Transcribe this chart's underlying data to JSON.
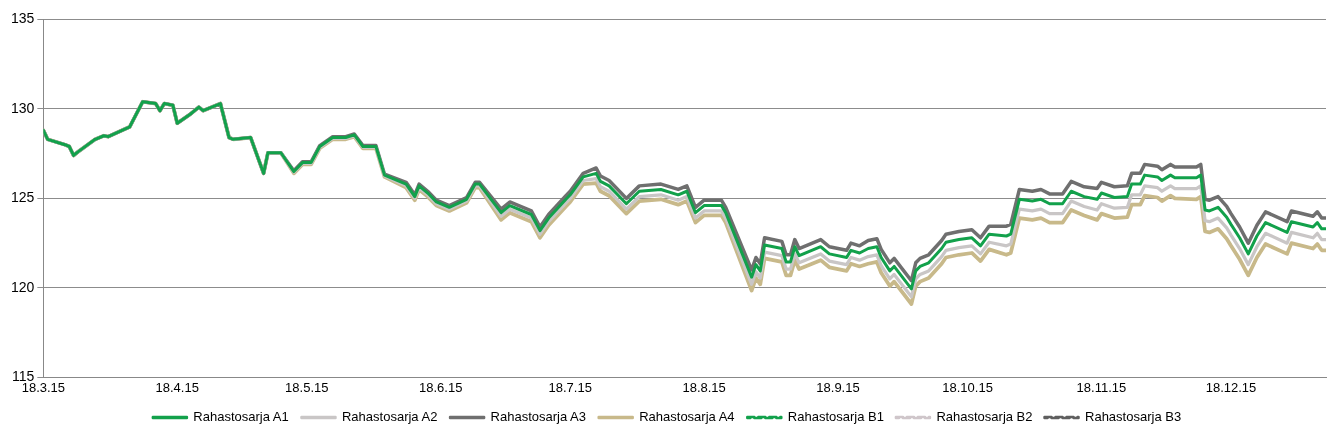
{
  "chart_data": {
    "type": "line",
    "line_style": "solid",
    "marker": "none",
    "grid": "y",
    "legend": "bottom",
    "ylim": [
      115,
      135
    ],
    "yticks": [
      115,
      120,
      125,
      130,
      135
    ],
    "xlim": [
      "2015-03-18",
      "2016-01-09"
    ],
    "xticks": [
      {
        "value": "2015-03-18",
        "label": "18.3.15"
      },
      {
        "value": "2015-04-18",
        "label": "18.4.15"
      },
      {
        "value": "2015-05-18",
        "label": "18.5.15"
      },
      {
        "value": "2015-06-18",
        "label": "18.6.15"
      },
      {
        "value": "2015-07-18",
        "label": "18.7.15"
      },
      {
        "value": "2015-08-18",
        "label": "18.8.15"
      },
      {
        "value": "2015-09-18",
        "label": "18.9.15"
      },
      {
        "value": "2015-10-18",
        "label": "18.10.15"
      },
      {
        "value": "2015-11-18",
        "label": "18.11.15"
      },
      {
        "value": "2015-12-18",
        "label": "18.12.15"
      }
    ],
    "x": [
      "2015-03-18",
      "2015-03-19",
      "2015-03-23",
      "2015-03-24",
      "2015-03-25",
      "2015-03-26",
      "2015-03-30",
      "2015-04-01",
      "2015-04-02",
      "2015-04-07",
      "2015-04-10",
      "2015-04-13",
      "2015-04-14",
      "2015-04-15",
      "2015-04-17",
      "2015-04-18",
      "2015-04-21",
      "2015-04-23",
      "2015-04-24",
      "2015-04-28",
      "2015-04-30",
      "2015-05-01",
      "2015-05-05",
      "2015-05-08",
      "2015-05-09",
      "2015-05-12",
      "2015-05-15",
      "2015-05-17",
      "2015-05-19",
      "2015-05-21",
      "2015-05-24",
      "2015-05-27",
      "2015-05-29",
      "2015-05-31",
      "2015-06-03",
      "2015-06-05",
      "2015-06-10",
      "2015-06-12",
      "2015-06-13",
      "2015-06-15",
      "2015-06-17",
      "2015-06-20",
      "2015-06-24",
      "2015-06-26",
      "2015-06-27",
      "2015-07-02",
      "2015-07-04",
      "2015-07-09",
      "2015-07-11",
      "2015-07-13",
      "2015-07-17",
      "2015-07-18",
      "2015-07-21",
      "2015-07-24",
      "2015-07-25",
      "2015-07-27",
      "2015-07-31",
      "2015-08-03",
      "2015-08-08",
      "2015-08-12",
      "2015-08-14",
      "2015-08-16",
      "2015-08-18",
      "2015-08-22",
      "2015-08-23",
      "2015-08-29",
      "2015-08-30",
      "2015-08-31",
      "2015-09-01",
      "2015-09-05",
      "2015-09-06",
      "2015-09-07",
      "2015-09-08",
      "2015-09-09",
      "2015-09-14",
      "2015-09-16",
      "2015-09-20",
      "2015-09-21",
      "2015-09-23",
      "2015-09-25",
      "2015-09-27",
      "2015-09-28",
      "2015-09-30",
      "2015-10-01",
      "2015-10-05",
      "2015-10-06",
      "2015-10-07",
      "2015-10-09",
      "2015-10-12",
      "2015-10-13",
      "2015-10-16",
      "2015-10-19",
      "2015-10-21",
      "2015-10-23",
      "2015-10-27",
      "2015-10-28",
      "2015-10-30",
      "2015-11-02",
      "2015-11-04",
      "2015-11-06",
      "2015-11-09",
      "2015-11-11",
      "2015-11-14",
      "2015-11-17",
      "2015-11-18",
      "2015-11-21",
      "2015-11-24",
      "2015-11-25",
      "2015-11-27",
      "2015-11-28",
      "2015-12-01",
      "2015-12-02",
      "2015-12-04",
      "2015-12-05",
      "2015-12-10",
      "2015-12-11",
      "2015-12-12",
      "2015-12-13",
      "2015-12-15",
      "2015-12-17",
      "2015-12-18",
      "2015-12-20",
      "2015-12-22",
      "2015-12-24",
      "2015-12-26",
      "2015-12-31",
      "2016-01-01",
      "2016-01-06",
      "2016-01-07",
      "2016-01-08",
      "2016-01-09"
    ],
    "series": [
      {
        "name": "Rahastosarja A1",
        "color": "#12a14b",
        "values": [
          128.8,
          128.3,
          128.0,
          127.9,
          127.4,
          127.6,
          128.3,
          128.5,
          128.45,
          129.0,
          130.4,
          130.3,
          129.9,
          130.3,
          130.2,
          129.2,
          129.7,
          130.1,
          129.9,
          130.3,
          128.4,
          128.3,
          128.4,
          126.4,
          127.55,
          127.55,
          126.5,
          127.0,
          127.0,
          127.9,
          128.4,
          128.4,
          128.55,
          127.9,
          127.9,
          126.3,
          125.8,
          125.1,
          125.7,
          125.3,
          124.8,
          124.5,
          124.95,
          125.8,
          125.8,
          124.2,
          124.6,
          124.1,
          123.2,
          123.9,
          124.95,
          125.2,
          126.2,
          126.4,
          125.95,
          125.7,
          124.7,
          125.4,
          125.5,
          125.2,
          125.4,
          124.2,
          124.6,
          124.6,
          124.2,
          120.6,
          121.3,
          120.95,
          122.4,
          122.2,
          121.45,
          121.45,
          122.3,
          121.8,
          122.3,
          121.9,
          121.7,
          122.1,
          121.95,
          122.2,
          122.3,
          121.7,
          120.95,
          121.2,
          119.95,
          120.95,
          121.2,
          121.4,
          122.2,
          122.55,
          122.7,
          122.8,
          122.35,
          123.0,
          122.9,
          123.0,
          124.95,
          124.85,
          124.95,
          124.7,
          124.7,
          125.4,
          125.1,
          124.95,
          125.3,
          125.05,
          125.1,
          125.8,
          125.8,
          126.3,
          126.2,
          126.0,
          126.3,
          126.15,
          126.15,
          126.3,
          124.35,
          124.3,
          124.5,
          123.95,
          123.55,
          122.8,
          121.9,
          122.9,
          123.65,
          123.1,
          123.7,
          123.4,
          123.65,
          123.3,
          123.3
        ]
      },
      {
        "name": "Rahastosarja A2",
        "color": "#c9c6c6",
        "values": [
          128.8,
          128.3,
          128.0,
          127.9,
          127.4,
          127.6,
          128.3,
          128.5,
          128.45,
          129.0,
          130.4,
          130.3,
          129.9,
          130.3,
          130.2,
          129.2,
          129.7,
          130.1,
          129.9,
          130.3,
          128.4,
          128.3,
          128.4,
          126.4,
          127.55,
          127.55,
          126.45,
          126.95,
          126.95,
          127.85,
          128.35,
          128.35,
          128.5,
          127.85,
          127.85,
          126.25,
          125.7,
          125.0,
          125.6,
          125.2,
          124.7,
          124.4,
          124.85,
          125.7,
          125.7,
          124.0,
          124.4,
          123.9,
          123.0,
          123.7,
          124.75,
          125.0,
          126.0,
          126.1,
          125.65,
          125.4,
          124.4,
          125.1,
          125.2,
          124.9,
          125.1,
          123.9,
          124.3,
          124.3,
          123.9,
          120.2,
          120.9,
          120.55,
          122.0,
          121.8,
          121.05,
          121.05,
          121.9,
          121.4,
          121.9,
          121.5,
          121.3,
          121.7,
          121.55,
          121.75,
          121.85,
          121.25,
          120.5,
          120.75,
          119.5,
          120.5,
          120.75,
          120.95,
          121.75,
          122.1,
          122.25,
          122.35,
          121.9,
          122.55,
          122.35,
          122.45,
          124.4,
          124.3,
          124.4,
          124.15,
          124.15,
          124.85,
          124.55,
          124.35,
          124.7,
          124.45,
          124.5,
          125.2,
          125.2,
          125.7,
          125.6,
          125.4,
          125.7,
          125.55,
          125.55,
          125.7,
          123.75,
          123.7,
          123.9,
          123.35,
          122.95,
          122.2,
          121.3,
          122.3,
          123.05,
          122.5,
          123.1,
          122.8,
          123.05,
          122.7,
          122.7
        ]
      },
      {
        "name": "Rahastosarja A3",
        "color": "#6f6f6f",
        "values": [
          128.8,
          128.3,
          128.0,
          127.9,
          127.4,
          127.6,
          128.3,
          128.5,
          128.45,
          129.0,
          130.4,
          130.3,
          129.9,
          130.3,
          130.2,
          129.2,
          129.7,
          130.1,
          129.9,
          130.3,
          128.4,
          128.3,
          128.4,
          126.4,
          127.55,
          127.55,
          126.55,
          127.05,
          127.05,
          127.95,
          128.45,
          128.45,
          128.6,
          127.95,
          127.95,
          126.35,
          125.9,
          125.2,
          125.8,
          125.4,
          124.9,
          124.6,
          125.05,
          125.9,
          125.9,
          124.4,
          124.8,
          124.3,
          123.4,
          124.1,
          125.15,
          125.4,
          126.4,
          126.7,
          126.25,
          126.0,
          125.0,
          125.7,
          125.8,
          125.5,
          125.7,
          124.5,
          124.9,
          124.9,
          124.5,
          121.0,
          121.7,
          121.35,
          122.8,
          122.6,
          121.85,
          121.85,
          122.7,
          122.2,
          122.7,
          122.3,
          122.1,
          122.5,
          122.35,
          122.65,
          122.75,
          122.15,
          121.4,
          121.65,
          120.4,
          121.4,
          121.65,
          121.85,
          122.65,
          123.0,
          123.15,
          123.25,
          122.8,
          123.45,
          123.45,
          123.55,
          125.5,
          125.4,
          125.5,
          125.25,
          125.25,
          125.95,
          125.65,
          125.55,
          125.9,
          125.65,
          125.7,
          126.4,
          126.4,
          126.9,
          126.8,
          126.6,
          126.9,
          126.75,
          126.75,
          126.9,
          124.95,
          124.9,
          125.1,
          124.55,
          124.15,
          123.4,
          122.5,
          123.5,
          124.25,
          123.7,
          124.3,
          124.0,
          124.25,
          123.9,
          123.9
        ]
      },
      {
        "name": "Rahastosarja A4",
        "color": "#c8b98a",
        "values": [
          128.8,
          128.3,
          128.0,
          127.9,
          127.4,
          127.6,
          128.3,
          128.5,
          128.45,
          129.0,
          130.4,
          130.3,
          129.9,
          130.3,
          130.2,
          129.2,
          129.7,
          130.1,
          129.9,
          130.3,
          128.4,
          128.3,
          128.4,
          126.4,
          127.55,
          127.55,
          126.4,
          126.9,
          126.9,
          127.8,
          128.3,
          128.3,
          128.45,
          127.8,
          127.8,
          126.2,
          125.6,
          124.9,
          125.5,
          125.1,
          124.6,
          124.3,
          124.75,
          125.6,
          125.6,
          123.8,
          124.2,
          123.7,
          122.8,
          123.5,
          124.55,
          124.8,
          125.8,
          125.85,
          125.4,
          125.15,
          124.15,
          124.85,
          124.95,
          124.65,
          124.85,
          123.65,
          124.05,
          124.05,
          123.65,
          119.85,
          120.55,
          120.2,
          121.65,
          121.45,
          120.7,
          120.7,
          121.55,
          121.05,
          121.55,
          121.15,
          120.95,
          121.35,
          121.2,
          121.35,
          121.45,
          120.85,
          120.1,
          120.35,
          119.1,
          120.1,
          120.35,
          120.55,
          121.35,
          121.7,
          121.85,
          121.95,
          121.5,
          122.15,
          121.85,
          121.95,
          123.9,
          123.8,
          123.9,
          123.65,
          123.65,
          124.35,
          124.05,
          123.8,
          124.15,
          123.9,
          123.95,
          124.65,
          124.65,
          125.15,
          125.05,
          124.85,
          125.15,
          125.0,
          124.95,
          125.1,
          123.15,
          123.1,
          123.3,
          122.75,
          122.35,
          121.6,
          120.7,
          121.7,
          122.45,
          121.9,
          122.5,
          122.2,
          122.45,
          122.1,
          122.1
        ]
      },
      {
        "name": "Rahastosarja B1",
        "color": "#12a14b",
        "line_style": "dashed",
        "values": [
          null,
          null,
          null,
          null,
          null,
          null,
          null,
          null,
          null,
          null,
          null,
          null,
          null,
          null,
          null,
          null,
          null,
          null,
          null,
          null,
          null,
          null,
          null,
          null,
          null,
          null,
          null,
          null,
          null,
          null,
          null,
          null,
          null,
          null,
          null,
          null,
          null,
          null,
          null,
          null,
          null,
          null,
          null,
          null,
          null,
          null,
          null,
          null,
          null,
          null,
          null,
          null,
          null,
          null,
          null,
          null,
          null,
          null,
          null,
          null,
          null,
          null,
          null,
          null,
          null,
          null,
          null,
          null,
          null,
          null,
          null,
          null,
          null,
          null,
          null,
          null,
          null,
          null,
          null,
          null,
          null,
          null,
          null,
          null,
          null,
          null,
          null,
          null,
          null,
          null,
          null,
          null,
          null,
          null,
          null,
          null,
          null,
          null,
          null,
          null,
          null,
          null,
          null,
          null,
          null,
          null,
          null,
          null,
          null,
          null,
          null,
          null,
          null,
          null,
          null,
          null,
          null,
          null,
          null,
          null,
          null,
          null,
          null,
          null,
          null,
          null,
          null,
          null,
          null,
          null,
          null
        ]
      },
      {
        "name": "Rahastosarja B2",
        "color": "#cfc6ca",
        "line_style": "dashed",
        "values": [
          null,
          null,
          null,
          null,
          null,
          null,
          null,
          null,
          null,
          null,
          null,
          null,
          null,
          null,
          null,
          null,
          null,
          null,
          null,
          null,
          null,
          null,
          null,
          null,
          null,
          null,
          null,
          null,
          null,
          null,
          null,
          null,
          null,
          null,
          null,
          null,
          null,
          null,
          null,
          null,
          null,
          null,
          null,
          null,
          null,
          null,
          null,
          null,
          null,
          null,
          null,
          null,
          null,
          null,
          null,
          null,
          null,
          null,
          null,
          null,
          null,
          null,
          null,
          null,
          null,
          null,
          null,
          null,
          null,
          null,
          null,
          null,
          null,
          null,
          null,
          null,
          null,
          null,
          null,
          null,
          null,
          null,
          null,
          null,
          null,
          null,
          null,
          null,
          null,
          null,
          null,
          null,
          null,
          null,
          null,
          null,
          null,
          null,
          null,
          null,
          null,
          null,
          null,
          null,
          null,
          null,
          null,
          null,
          null,
          null,
          null,
          null,
          null,
          null,
          null,
          null,
          null,
          null,
          null,
          null,
          null,
          null,
          null,
          null,
          null,
          null,
          null,
          null,
          null,
          null,
          null
        ]
      },
      {
        "name": "Rahastosarja B3",
        "color": "#5f5f5f",
        "line_style": "dashed",
        "values": [
          null,
          null,
          null,
          null,
          null,
          null,
          null,
          null,
          null,
          null,
          null,
          null,
          null,
          null,
          null,
          null,
          null,
          null,
          null,
          null,
          null,
          null,
          null,
          null,
          null,
          null,
          null,
          null,
          null,
          null,
          null,
          null,
          null,
          null,
          null,
          null,
          null,
          null,
          null,
          null,
          null,
          null,
          null,
          null,
          null,
          null,
          null,
          null,
          null,
          null,
          null,
          null,
          null,
          null,
          null,
          null,
          null,
          null,
          null,
          null,
          null,
          null,
          null,
          null,
          null,
          null,
          null,
          null,
          null,
          null,
          null,
          null,
          null,
          null,
          null,
          null,
          null,
          null,
          null,
          null,
          null,
          null,
          null,
          null,
          null,
          null,
          null,
          null,
          null,
          null,
          null,
          null,
          null,
          null,
          null,
          null,
          null,
          null,
          null,
          null,
          null,
          null,
          null,
          null,
          null,
          null,
          null,
          null,
          null,
          null,
          null,
          null,
          null,
          null,
          null,
          null,
          null,
          null,
          null,
          null,
          null,
          null,
          null,
          null,
          null,
          null,
          null,
          null,
          null,
          null,
          null
        ]
      }
    ]
  }
}
